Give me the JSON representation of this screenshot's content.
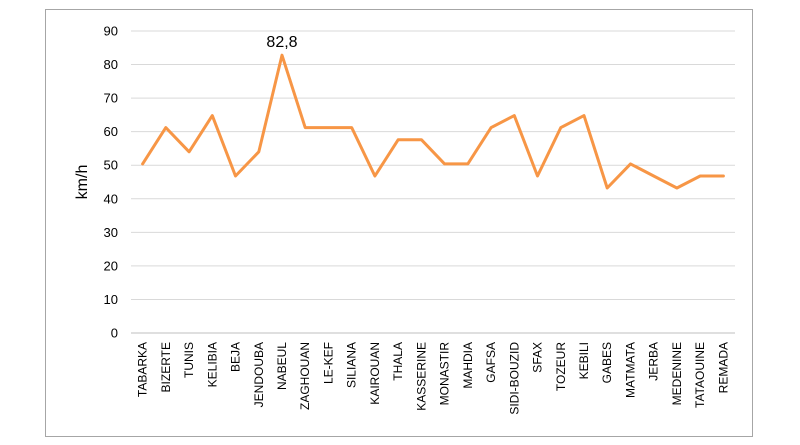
{
  "chart_data": {
    "type": "line",
    "title": "",
    "xlabel": "",
    "ylabel": "km/h",
    "ylim": [
      0,
      90
    ],
    "yticks": [
      0,
      10,
      20,
      30,
      40,
      50,
      60,
      70,
      80,
      90
    ],
    "grid": true,
    "legend": "none",
    "categories": [
      "TABARKA",
      "BIZERTE",
      "TUNIS",
      "KELIBIA",
      "BEJA",
      "JENDOUBA",
      "NABEUL",
      "ZAGHOUAN",
      "LE-KEF",
      "SILIANA",
      "KAIROUAN",
      "THALA",
      "KASSERINE",
      "MONASTIR",
      "MAHDIA",
      "GAFSA",
      "SIDI-BOUZID",
      "SFAX",
      "TOZEUR",
      "KEBILI",
      "GABES",
      "MATMATA",
      "JERBA",
      "MEDENINE",
      "TATAOUINE",
      "REMADA"
    ],
    "series": [
      {
        "color": "#f79646",
        "values": [
          50.4,
          61.2,
          54.0,
          64.8,
          46.8,
          54.0,
          82.8,
          61.2,
          61.2,
          61.2,
          46.8,
          57.6,
          57.6,
          50.4,
          50.4,
          61.2,
          64.8,
          46.8,
          61.2,
          64.8,
          43.2,
          50.4,
          46.8,
          43.2,
          46.8,
          46.8
        ]
      }
    ],
    "annotations": [
      {
        "category": "NABEUL",
        "value": 82.8,
        "text": "82,8"
      }
    ]
  }
}
